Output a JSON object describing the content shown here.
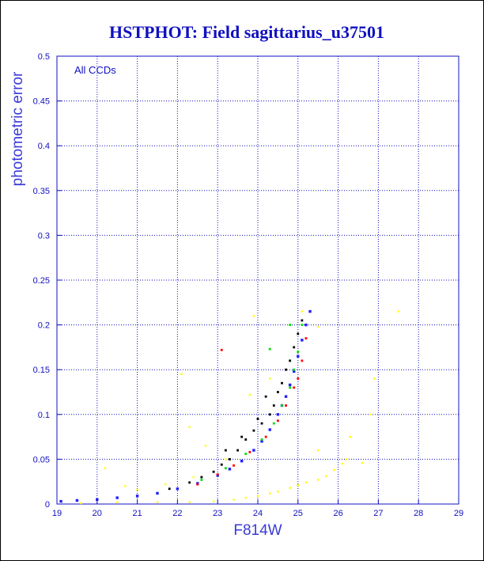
{
  "chart_data": {
    "type": "scatter",
    "title": "HSTPHOT: Field sagittarius_u37501",
    "xlabel": "F814W",
    "ylabel": "photometric error",
    "annotation": "All CCDs",
    "xlim": [
      19,
      29
    ],
    "ylim": [
      0,
      0.5
    ],
    "xticks": [
      "19",
      "20",
      "21",
      "22",
      "23",
      "24",
      "25",
      "26",
      "27",
      "28",
      "29"
    ],
    "yticks": [
      "0",
      "0.05",
      "0.1",
      "0.15",
      "0.2",
      "0.25",
      "0.3",
      "0.35",
      "0.4",
      "0.45",
      "0.5"
    ],
    "grid": true,
    "colors": {
      "frame": "#1010c0",
      "grid": "#1010c0",
      "text": "#1010c0",
      "blue": "#2020ff",
      "black": "#000000",
      "red": "#ff0000",
      "green": "#00dd00",
      "yellow": "#ffff00"
    },
    "series": [
      {
        "color_key": "blue",
        "values": [
          [
            19.1,
            0.003
          ],
          [
            19.5,
            0.004
          ],
          [
            20.0,
            0.005
          ],
          [
            20.5,
            0.007
          ],
          [
            21.0,
            0.009
          ],
          [
            21.5,
            0.012
          ],
          [
            22.0,
            0.017
          ],
          [
            22.5,
            0.023
          ],
          [
            23.0,
            0.032
          ],
          [
            23.3,
            0.039
          ],
          [
            23.6,
            0.048
          ],
          [
            23.9,
            0.06
          ],
          [
            24.1,
            0.07
          ],
          [
            24.3,
            0.083
          ],
          [
            24.5,
            0.1
          ],
          [
            24.6,
            0.11
          ],
          [
            24.7,
            0.12
          ],
          [
            24.8,
            0.133
          ],
          [
            24.9,
            0.148
          ],
          [
            25.0,
            0.165
          ],
          [
            25.1,
            0.183
          ],
          [
            25.2,
            0.2
          ],
          [
            25.3,
            0.215
          ]
        ]
      },
      {
        "color_key": "black",
        "values": [
          [
            21.8,
            0.017
          ],
          [
            22.3,
            0.024
          ],
          [
            22.6,
            0.03
          ],
          [
            22.9,
            0.036
          ],
          [
            23.1,
            0.044
          ],
          [
            23.3,
            0.05
          ],
          [
            23.5,
            0.06
          ],
          [
            23.7,
            0.072
          ],
          [
            23.9,
            0.082
          ],
          [
            24.1,
            0.09
          ],
          [
            24.3,
            0.1
          ],
          [
            24.4,
            0.11
          ],
          [
            24.5,
            0.125
          ],
          [
            24.6,
            0.135
          ],
          [
            24.7,
            0.15
          ],
          [
            24.8,
            0.16
          ],
          [
            24.9,
            0.175
          ],
          [
            25.0,
            0.19
          ],
          [
            25.1,
            0.205
          ],
          [
            23.2,
            0.06
          ],
          [
            23.6,
            0.075
          ],
          [
            24.0,
            0.095
          ],
          [
            24.2,
            0.12
          ]
        ]
      },
      {
        "color_key": "red",
        "values": [
          [
            22.5,
            0.022
          ],
          [
            23.0,
            0.033
          ],
          [
            23.4,
            0.043
          ],
          [
            23.8,
            0.058
          ],
          [
            24.2,
            0.075
          ],
          [
            24.5,
            0.093
          ],
          [
            24.7,
            0.11
          ],
          [
            24.9,
            0.13
          ],
          [
            25.0,
            0.14
          ],
          [
            25.1,
            0.16
          ],
          [
            23.1,
            0.172
          ],
          [
            25.2,
            0.185
          ]
        ]
      },
      {
        "color_key": "green",
        "values": [
          [
            22.6,
            0.027
          ],
          [
            23.2,
            0.04
          ],
          [
            23.7,
            0.056
          ],
          [
            24.1,
            0.072
          ],
          [
            24.4,
            0.09
          ],
          [
            24.6,
            0.11
          ],
          [
            24.8,
            0.13
          ],
          [
            24.9,
            0.15
          ],
          [
            25.0,
            0.17
          ],
          [
            24.3,
            0.173
          ],
          [
            25.1,
            0.2
          ],
          [
            24.8,
            0.2
          ]
        ]
      },
      {
        "color_key": "yellow",
        "values": [
          [
            19.6,
            0.001
          ],
          [
            20.5,
            0.002
          ],
          [
            21.5,
            0.002
          ],
          [
            22.3,
            0.002
          ],
          [
            22.9,
            0.003
          ],
          [
            23.4,
            0.005
          ],
          [
            23.7,
            0.007
          ],
          [
            24.0,
            0.009
          ],
          [
            24.3,
            0.012
          ],
          [
            24.5,
            0.014
          ],
          [
            24.8,
            0.018
          ],
          [
            25.0,
            0.021
          ],
          [
            25.2,
            0.024
          ],
          [
            25.5,
            0.027
          ],
          [
            25.7,
            0.031
          ],
          [
            25.9,
            0.038
          ],
          [
            26.1,
            0.045
          ],
          [
            26.2,
            0.05
          ],
          [
            21.0,
            0.016
          ],
          [
            21.7,
            0.022
          ],
          [
            22.4,
            0.03
          ],
          [
            23.2,
            0.05
          ],
          [
            22.3,
            0.086
          ],
          [
            22.1,
            0.145
          ],
          [
            23.8,
            0.122
          ],
          [
            24.3,
            0.14
          ],
          [
            25.1,
            0.215
          ],
          [
            26.8,
            0.1
          ],
          [
            26.9,
            0.14
          ],
          [
            27.5,
            0.215
          ],
          [
            25.5,
            0.198
          ],
          [
            25.5,
            0.06
          ],
          [
            26.6,
            0.046
          ],
          [
            20.2,
            0.04
          ],
          [
            20.7,
            0.02
          ],
          [
            26.3,
            0.075
          ],
          [
            22.7,
            0.065
          ],
          [
            23.9,
            0.21
          ]
        ]
      }
    ]
  }
}
